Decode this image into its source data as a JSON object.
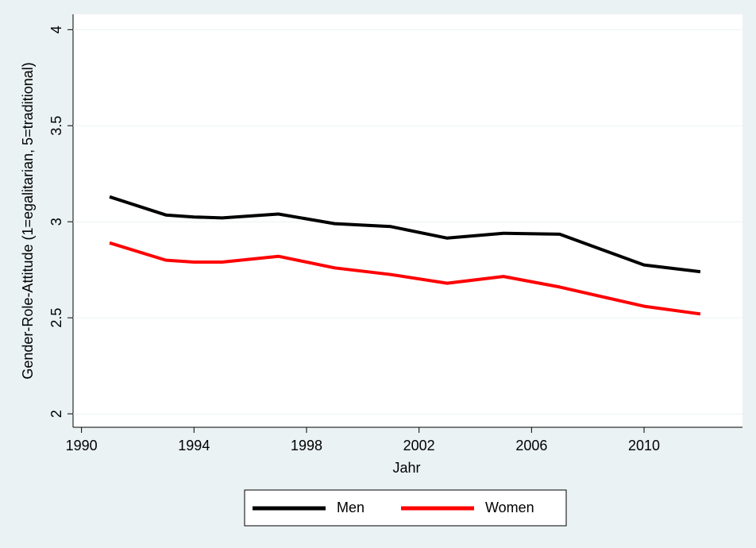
{
  "chart_data": {
    "type": "line",
    "x_label": "Jahr",
    "y_label": "Gender-Role-Attitude (1=egalitarian,  5=traditional)",
    "x": [
      1991,
      1993,
      1994,
      1995,
      1997,
      1999,
      2001,
      2003,
      2005,
      2007,
      2010,
      2012
    ],
    "series": [
      {
        "name": "Men",
        "color": "#000000",
        "values": [
          3.13,
          3.035,
          3.025,
          3.02,
          3.04,
          2.99,
          2.975,
          2.915,
          2.94,
          2.935,
          2.775,
          2.74
        ]
      },
      {
        "name": "Women",
        "color": "#ff0000",
        "values": [
          2.89,
          2.8,
          2.79,
          2.79,
          2.82,
          2.76,
          2.725,
          2.68,
          2.715,
          2.66,
          2.56,
          2.52
        ]
      }
    ],
    "xlim": [
      1989.7,
      2013.5
    ],
    "xticks": [
      1990,
      1994,
      1998,
      2002,
      2006,
      2010
    ],
    "ylim": [
      1.93,
      4.08
    ],
    "yticks": [
      2,
      2.5,
      3,
      3.5,
      4
    ],
    "grid": true,
    "legend": "bottom"
  }
}
